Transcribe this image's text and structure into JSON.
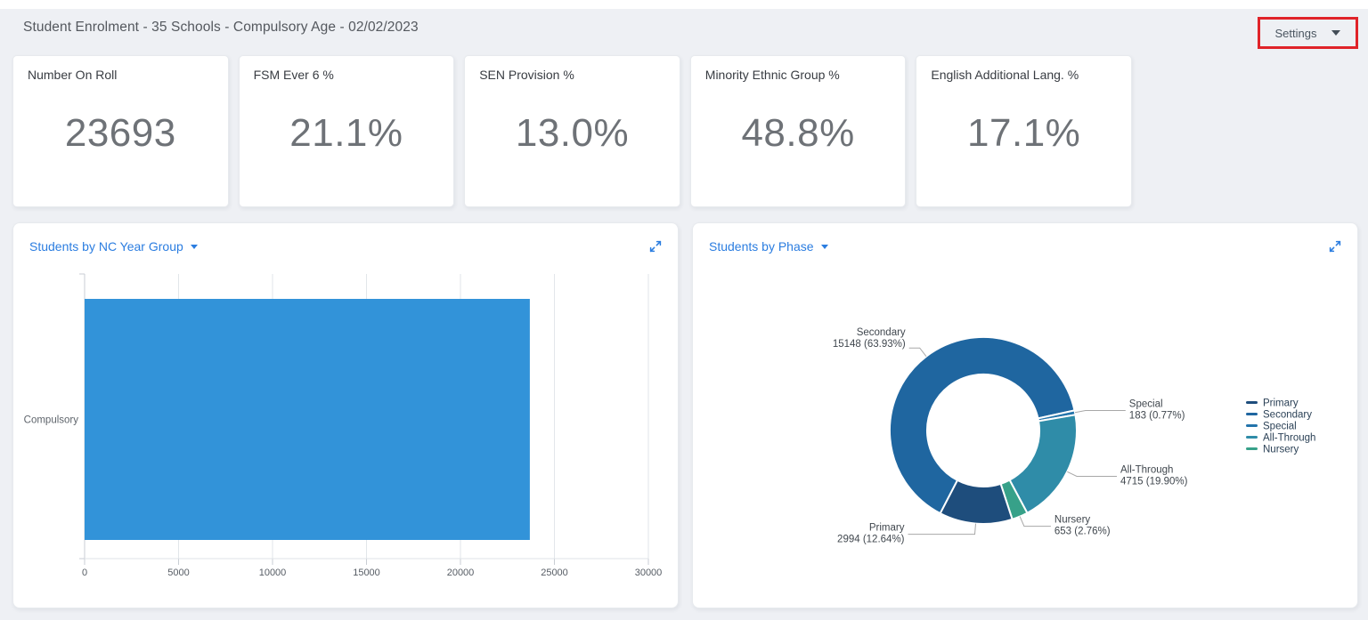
{
  "page": {
    "background": "#eef0f4"
  },
  "header": {
    "title": "Student Enrolment - 35 Schools - Compulsory Age - 02/02/2023",
    "settings": {
      "label": "Settings"
    },
    "annotation_color": "#e02329"
  },
  "kpis": [
    {
      "label": "Number On Roll",
      "value": "23693"
    },
    {
      "label": "FSM Ever 6 %",
      "value": "21.1%"
    },
    {
      "label": "SEN Provision %",
      "value": "13.0%"
    },
    {
      "label": "Minority Ethnic Group %",
      "value": "48.8%"
    },
    {
      "label": "English Additional Lang. %",
      "value": "17.1%"
    }
  ],
  "chart_data": [
    {
      "type": "bar",
      "title": "Students by NC Year Group",
      "orientation": "horizontal",
      "categories": [
        "Compulsory"
      ],
      "values": [
        23693
      ],
      "xlabel": "",
      "ylabel": "",
      "xlim": [
        0,
        30000
      ],
      "x_ticks": [
        0,
        5000,
        10000,
        15000,
        20000,
        25000,
        30000
      ],
      "bar_color": "#3293d9",
      "grid": true,
      "legend_position": "none"
    },
    {
      "type": "pie",
      "title": "Students by Phase",
      "donut": true,
      "start_angle_deg": 207.4,
      "slices": [
        {
          "name": "Secondary",
          "value": 15148,
          "pct": 63.93,
          "color": "#1f66a0",
          "detail": "15148 (63.93%)"
        },
        {
          "name": "Special",
          "value": 183,
          "pct": 0.77,
          "color": "#2374ab",
          "detail": "183 (0.77%)"
        },
        {
          "name": "All-Through",
          "value": 4715,
          "pct": 19.9,
          "color": "#2f8ca8",
          "detail": "4715 (19.90%)"
        },
        {
          "name": "Nursery",
          "value": 653,
          "pct": 2.76,
          "color": "#37a189",
          "detail": "653 (2.76%)"
        },
        {
          "name": "Primary",
          "value": 2994,
          "pct": 12.64,
          "color": "#1e4d7c",
          "detail": "2994 (12.64%)"
        }
      ],
      "legend": [
        "Primary",
        "Secondary",
        "Special",
        "All-Through",
        "Nursery"
      ],
      "legend_position": "right"
    }
  ]
}
